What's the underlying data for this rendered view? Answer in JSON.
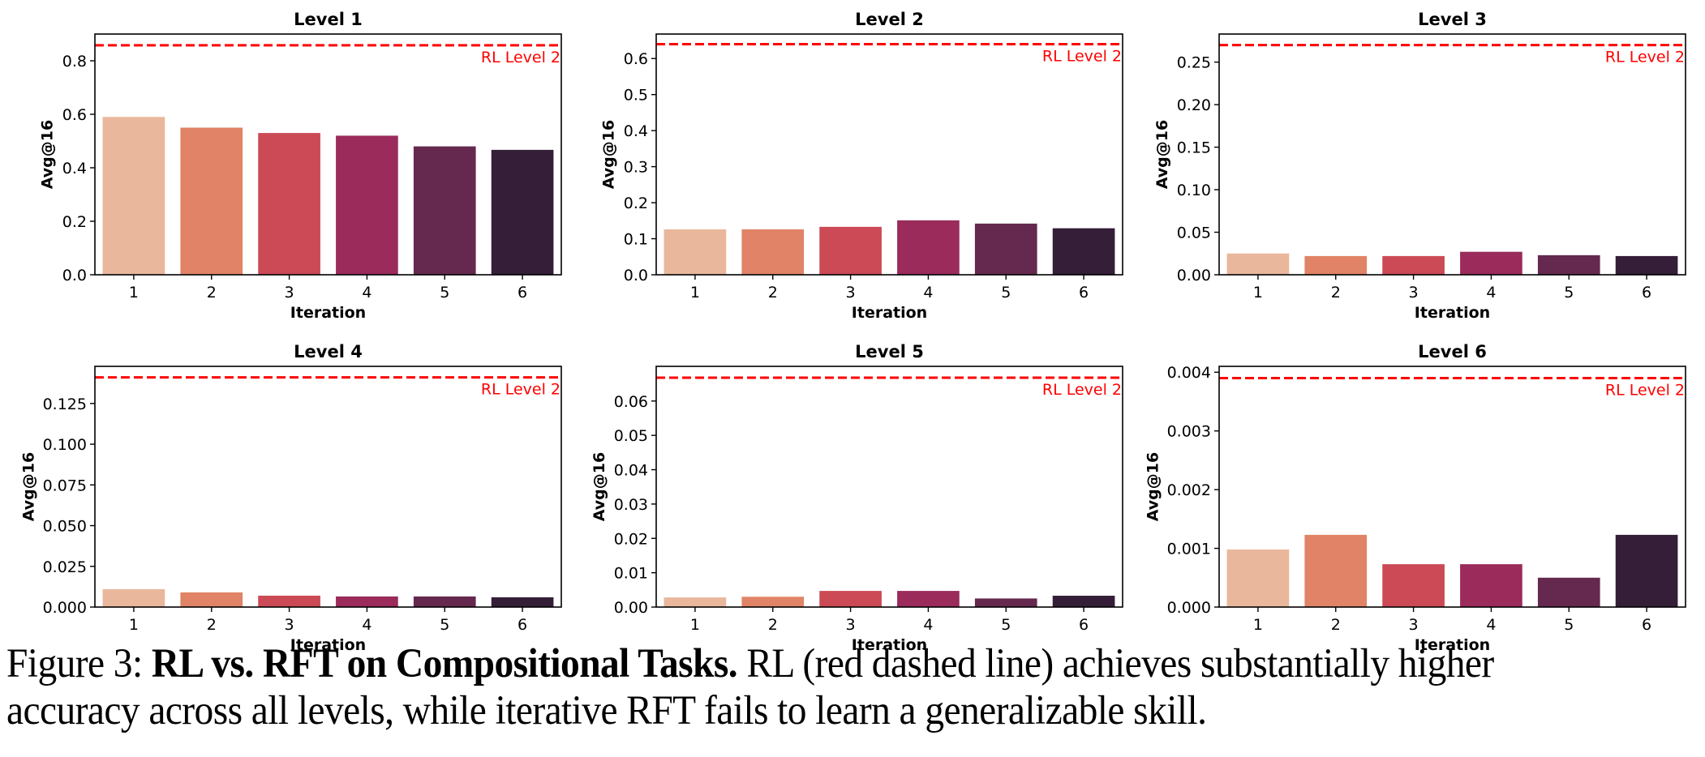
{
  "chart_data": [
    {
      "type": "bar",
      "title": "Level 1",
      "xlabel": "Iteration",
      "ylabel": "Avg@16",
      "categories": [
        "1",
        "2",
        "3",
        "4",
        "5",
        "6"
      ],
      "values": [
        0.59,
        0.55,
        0.53,
        0.52,
        0.48,
        0.467
      ],
      "ylim": [
        0,
        0.9
      ],
      "yticks": [
        0.0,
        0.2,
        0.4,
        0.6,
        0.8
      ],
      "ytick_labels": [
        "0.0",
        "0.2",
        "0.4",
        "0.6",
        "0.8"
      ],
      "reference_line": {
        "value": 0.858,
        "label": "RL Level 2",
        "style": "dashed"
      }
    },
    {
      "type": "bar",
      "title": "Level 2",
      "xlabel": "Iteration",
      "ylabel": "Avg@16",
      "categories": [
        "1",
        "2",
        "3",
        "4",
        "5",
        "6"
      ],
      "values": [
        0.126,
        0.126,
        0.133,
        0.151,
        0.142,
        0.129
      ],
      "ylim": [
        0,
        0.668
      ],
      "yticks": [
        0.0,
        0.1,
        0.2,
        0.3,
        0.4,
        0.5,
        0.6
      ],
      "ytick_labels": [
        "0.0",
        "0.1",
        "0.2",
        "0.3",
        "0.4",
        "0.5",
        "0.6"
      ],
      "reference_line": {
        "value": 0.64,
        "label": "RL Level 2",
        "style": "dashed"
      }
    },
    {
      "type": "bar",
      "title": "Level 3",
      "xlabel": "Iteration",
      "ylabel": "Avg@16",
      "categories": [
        "1",
        "2",
        "3",
        "4",
        "5",
        "6"
      ],
      "values": [
        0.025,
        0.022,
        0.022,
        0.027,
        0.023,
        0.022
      ],
      "ylim": [
        0,
        0.283
      ],
      "yticks": [
        0.0,
        0.05,
        0.1,
        0.15,
        0.2,
        0.25
      ],
      "ytick_labels": [
        "0.00",
        "0.05",
        "0.10",
        "0.15",
        "0.20",
        "0.25"
      ],
      "reference_line": {
        "value": 0.27,
        "label": "RL Level 2",
        "style": "dashed"
      }
    },
    {
      "type": "bar",
      "title": "Level 4",
      "xlabel": "Iteration",
      "ylabel": "Avg@16",
      "categories": [
        "1",
        "2",
        "3",
        "4",
        "5",
        "6"
      ],
      "values": [
        0.011,
        0.009,
        0.007,
        0.0065,
        0.0065,
        0.006
      ],
      "ylim": [
        0,
        0.1478
      ],
      "yticks": [
        0.0,
        0.025,
        0.05,
        0.075,
        0.1,
        0.125
      ],
      "ytick_labels": [
        "0.000",
        "0.025",
        "0.050",
        "0.075",
        "0.100",
        "0.125"
      ],
      "reference_line": {
        "value": 0.141,
        "label": "RL Level 2",
        "style": "dashed"
      }
    },
    {
      "type": "bar",
      "title": "Level 5",
      "xlabel": "Iteration",
      "ylabel": "Avg@16",
      "categories": [
        "1",
        "2",
        "3",
        "4",
        "5",
        "6"
      ],
      "values": [
        0.0028,
        0.003,
        0.0047,
        0.0047,
        0.0025,
        0.0033
      ],
      "ylim": [
        0,
        0.0701
      ],
      "yticks": [
        0.0,
        0.01,
        0.02,
        0.03,
        0.04,
        0.05,
        0.06
      ],
      "ytick_labels": [
        "0.00",
        "0.01",
        "0.02",
        "0.03",
        "0.04",
        "0.05",
        "0.06"
      ],
      "reference_line": {
        "value": 0.0668,
        "label": "RL Level 2",
        "style": "dashed"
      }
    },
    {
      "type": "bar",
      "title": "Level 6",
      "xlabel": "Iteration",
      "ylabel": "Avg@16",
      "categories": [
        "1",
        "2",
        "3",
        "4",
        "5",
        "6"
      ],
      "values": [
        0.00098,
        0.00123,
        0.00073,
        0.00073,
        0.0005,
        0.00123
      ],
      "ylim": [
        0,
        0.0041
      ],
      "yticks": [
        0.0,
        0.001,
        0.002,
        0.003,
        0.004
      ],
      "ytick_labels": [
        "0.000",
        "0.001",
        "0.002",
        "0.003",
        "0.004"
      ],
      "reference_line": {
        "value": 0.0039,
        "label": "RL Level 2",
        "style": "dashed"
      }
    }
  ],
  "palette": [
    "#e9b79b",
    "#e08366",
    "#cb4a56",
    "#9a2b5b",
    "#65284f",
    "#351e38"
  ],
  "reference_color": "#ff0000",
  "caption": {
    "prefix": "Figure 3: ",
    "bold": "RL vs. RFT on Compositional Tasks.",
    "line1_rest": " RL (red dashed line) achieves substantially higher",
    "line2": "accuracy across all levels, while iterative RFT fails to learn a generalizable skill."
  }
}
